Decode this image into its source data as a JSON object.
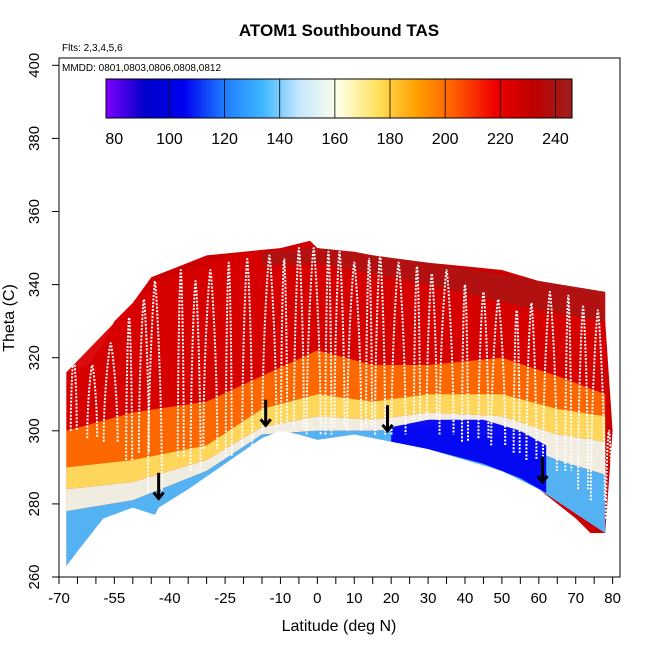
{
  "chart_data": {
    "type": "heatmap",
    "title": "ATOM1 Southbound TAS",
    "subtitle_flights": "Flts: 2,3,4,5,6",
    "subtitle_dates": "MMDD: 0801,0803,0806,0808,0812",
    "xlabel": "Latitude (deg N)",
    "ylabel": "Theta (C)",
    "xlim": [
      -70,
      82
    ],
    "ylim": [
      260,
      402
    ],
    "x_ticks": [
      -70,
      -55,
      -40,
      -25,
      -10,
      0,
      10,
      20,
      30,
      40,
      50,
      60,
      70,
      80
    ],
    "y_ticks": [
      260,
      280,
      300,
      320,
      340,
      360,
      380,
      400
    ],
    "colorbar": {
      "min": 77,
      "max": 246,
      "ticks": [
        80,
        100,
        120,
        140,
        160,
        180,
        200,
        220,
        240
      ],
      "colors": [
        "#7f00ff",
        "#0000c8",
        "#0000f0",
        "#1e78ff",
        "#3cb4ff",
        "#c8e8ff",
        "#ffffe6",
        "#ffe05a",
        "#ffa000",
        "#ff5a00",
        "#f00000",
        "#be0000",
        "#a01e1e"
      ],
      "tick_lines": [
        100,
        120,
        140,
        160,
        180,
        200,
        220,
        240
      ]
    },
    "lower_boundary": [
      [
        -68,
        263
      ],
      [
        -65,
        267
      ],
      [
        -58,
        276
      ],
      [
        -50,
        279
      ],
      [
        -44,
        277
      ],
      [
        -43,
        279
      ],
      [
        -35,
        284
      ],
      [
        -25,
        291
      ],
      [
        -15,
        298
      ],
      [
        -10,
        300
      ],
      [
        -5,
        299
      ],
      [
        0,
        297.5
      ],
      [
        10,
        299
      ],
      [
        20,
        297
      ],
      [
        30,
        295
      ],
      [
        40,
        292
      ],
      [
        50,
        289
      ],
      [
        60,
        284
      ],
      [
        70,
        276
      ],
      [
        74,
        272
      ],
      [
        78,
        272
      ]
    ],
    "upper_boundary": [
      [
        -68,
        316
      ],
      [
        -62,
        318
      ],
      [
        -58,
        324
      ],
      [
        -55,
        330
      ],
      [
        -50,
        335
      ],
      [
        -45,
        342
      ],
      [
        -40,
        344
      ],
      [
        -35,
        346
      ],
      [
        -30,
        348
      ],
      [
        -20,
        349
      ],
      [
        -10,
        350
      ],
      [
        -2,
        352
      ],
      [
        0,
        350
      ],
      [
        10,
        349
      ],
      [
        20,
        347
      ],
      [
        30,
        346
      ],
      [
        40,
        345
      ],
      [
        50,
        344
      ],
      [
        60,
        341
      ],
      [
        70,
        339
      ],
      [
        76,
        338
      ],
      [
        78,
        330
      ],
      [
        80,
        300
      ]
    ],
    "colored_zones": [
      {
        "top": [
          [
            -68,
            316
          ],
          [
            -45,
            340
          ],
          [
            -20,
            349
          ],
          [
            0,
            350
          ],
          [
            30,
            346
          ],
          [
            60,
            341
          ],
          [
            78,
            338
          ]
        ],
        "bottom": [
          [
            -68,
            300
          ],
          [
            -50,
            305
          ],
          [
            -30,
            308
          ],
          [
            -15,
            315
          ],
          [
            0,
            322
          ],
          [
            15,
            318
          ],
          [
            30,
            318
          ],
          [
            50,
            320
          ],
          [
            65,
            315
          ],
          [
            78,
            310
          ]
        ],
        "value": 225
      },
      {
        "top": [
          [
            -68,
            300
          ],
          [
            -50,
            305
          ],
          [
            -30,
            308
          ],
          [
            -15,
            315
          ],
          [
            0,
            322
          ],
          [
            15,
            318
          ],
          [
            30,
            318
          ],
          [
            50,
            320
          ],
          [
            65,
            315
          ],
          [
            78,
            310
          ]
        ],
        "bottom": [
          [
            -68,
            290
          ],
          [
            -50,
            292
          ],
          [
            -30,
            296
          ],
          [
            -15,
            306
          ],
          [
            0,
            310
          ],
          [
            15,
            308
          ],
          [
            30,
            310
          ],
          [
            50,
            310
          ],
          [
            65,
            306
          ],
          [
            78,
            304
          ]
        ],
        "value": 200
      },
      {
        "top": [
          [
            -68,
            290
          ],
          [
            -50,
            292
          ],
          [
            -30,
            296
          ],
          [
            -15,
            306
          ],
          [
            0,
            310
          ],
          [
            15,
            308
          ],
          [
            30,
            310
          ],
          [
            50,
            310
          ],
          [
            65,
            306
          ],
          [
            78,
            304
          ]
        ],
        "bottom": [
          [
            -68,
            284
          ],
          [
            -50,
            286
          ],
          [
            -30,
            292
          ],
          [
            -15,
            301
          ],
          [
            0,
            304
          ],
          [
            15,
            303
          ],
          [
            30,
            305
          ],
          [
            50,
            304
          ],
          [
            65,
            299
          ],
          [
            78,
            297
          ]
        ],
        "value": 175
      },
      {
        "top": [
          [
            -68,
            284
          ],
          [
            -50,
            286
          ],
          [
            -30,
            292
          ],
          [
            -15,
            301
          ],
          [
            0,
            304
          ],
          [
            15,
            303
          ],
          [
            30,
            305
          ],
          [
            50,
            304
          ],
          [
            65,
            299
          ],
          [
            78,
            297
          ]
        ],
        "bottom": [
          [
            -68,
            278
          ],
          [
            -50,
            281
          ],
          [
            -30,
            289
          ],
          [
            -15,
            299
          ],
          [
            0,
            300
          ],
          [
            15,
            300
          ],
          [
            30,
            301
          ],
          [
            50,
            298
          ],
          [
            65,
            292
          ],
          [
            78,
            288
          ]
        ],
        "value": 158
      },
      {
        "top": [
          [
            -68,
            278
          ],
          [
            -50,
            281
          ],
          [
            -30,
            289
          ],
          [
            -15,
            299
          ],
          [
            0,
            300
          ],
          [
            15,
            300
          ],
          [
            30,
            301
          ],
          [
            50,
            298
          ],
          [
            65,
            292
          ],
          [
            78,
            288
          ]
        ],
        "bottom": [
          [
            -68,
            263
          ],
          [
            -58,
            276
          ],
          [
            -44,
            277
          ],
          [
            -25,
            291
          ],
          [
            -10,
            300
          ],
          [
            0,
            297.5
          ],
          [
            20,
            297
          ],
          [
            40,
            292
          ],
          [
            60,
            284
          ],
          [
            78,
            272
          ]
        ],
        "value": 135
      },
      {
        "top": [
          [
            20,
            301
          ],
          [
            30,
            303
          ],
          [
            45,
            303
          ],
          [
            55,
            300
          ],
          [
            62,
            296
          ]
        ],
        "bottom": [
          [
            20,
            297
          ],
          [
            30,
            295
          ],
          [
            45,
            291
          ],
          [
            55,
            287
          ],
          [
            62,
            283
          ]
        ],
        "value": 105
      }
    ],
    "dark_cap": {
      "top": [
        [
          -15,
          349
        ],
        [
          0,
          350
        ],
        [
          30,
          346
        ],
        [
          60,
          341
        ],
        [
          78,
          338
        ]
      ],
      "bottom": [
        [
          -15,
          345
        ],
        [
          0,
          346
        ],
        [
          30,
          340
        ],
        [
          60,
          333
        ],
        [
          78,
          330
        ]
      ],
      "value": 242
    },
    "arrows": [
      [
        -43,
        283.5
      ],
      [
        -14,
        303.5
      ],
      [
        19,
        302
      ],
      [
        61,
        288
      ]
    ],
    "profiles": [
      [
        -66,
        300,
        320
      ],
      [
        -61,
        298,
        318
      ],
      [
        -56,
        297,
        324
      ],
      [
        -51,
        292,
        331
      ],
      [
        -47,
        294,
        336
      ],
      [
        -44,
        283,
        341
      ],
      [
        -37,
        293,
        344
      ],
      [
        -33,
        289,
        341
      ],
      [
        -29,
        295,
        344
      ],
      [
        -24,
        293,
        346
      ],
      [
        -19,
        296,
        347
      ],
      [
        -13,
        300,
        348
      ],
      [
        -9,
        302,
        347
      ],
      [
        -5,
        301,
        350
      ],
      [
        -1,
        299,
        350
      ],
      [
        3,
        299,
        349
      ],
      [
        6,
        301,
        349
      ],
      [
        10,
        300,
        346
      ],
      [
        14,
        301,
        347
      ],
      [
        17,
        299,
        348
      ],
      [
        22,
        299,
        346
      ],
      [
        27,
        303,
        345
      ],
      [
        31,
        303,
        343
      ],
      [
        35,
        299,
        344
      ],
      [
        40,
        297,
        340
      ],
      [
        45,
        298,
        338
      ],
      [
        49,
        296,
        336
      ],
      [
        54,
        294,
        333
      ],
      [
        58,
        292,
        335
      ],
      [
        63,
        289,
        338
      ],
      [
        68,
        289,
        337
      ],
      [
        72,
        284,
        334
      ],
      [
        76,
        281,
        333
      ],
      [
        79,
        276,
        300
      ]
    ]
  }
}
